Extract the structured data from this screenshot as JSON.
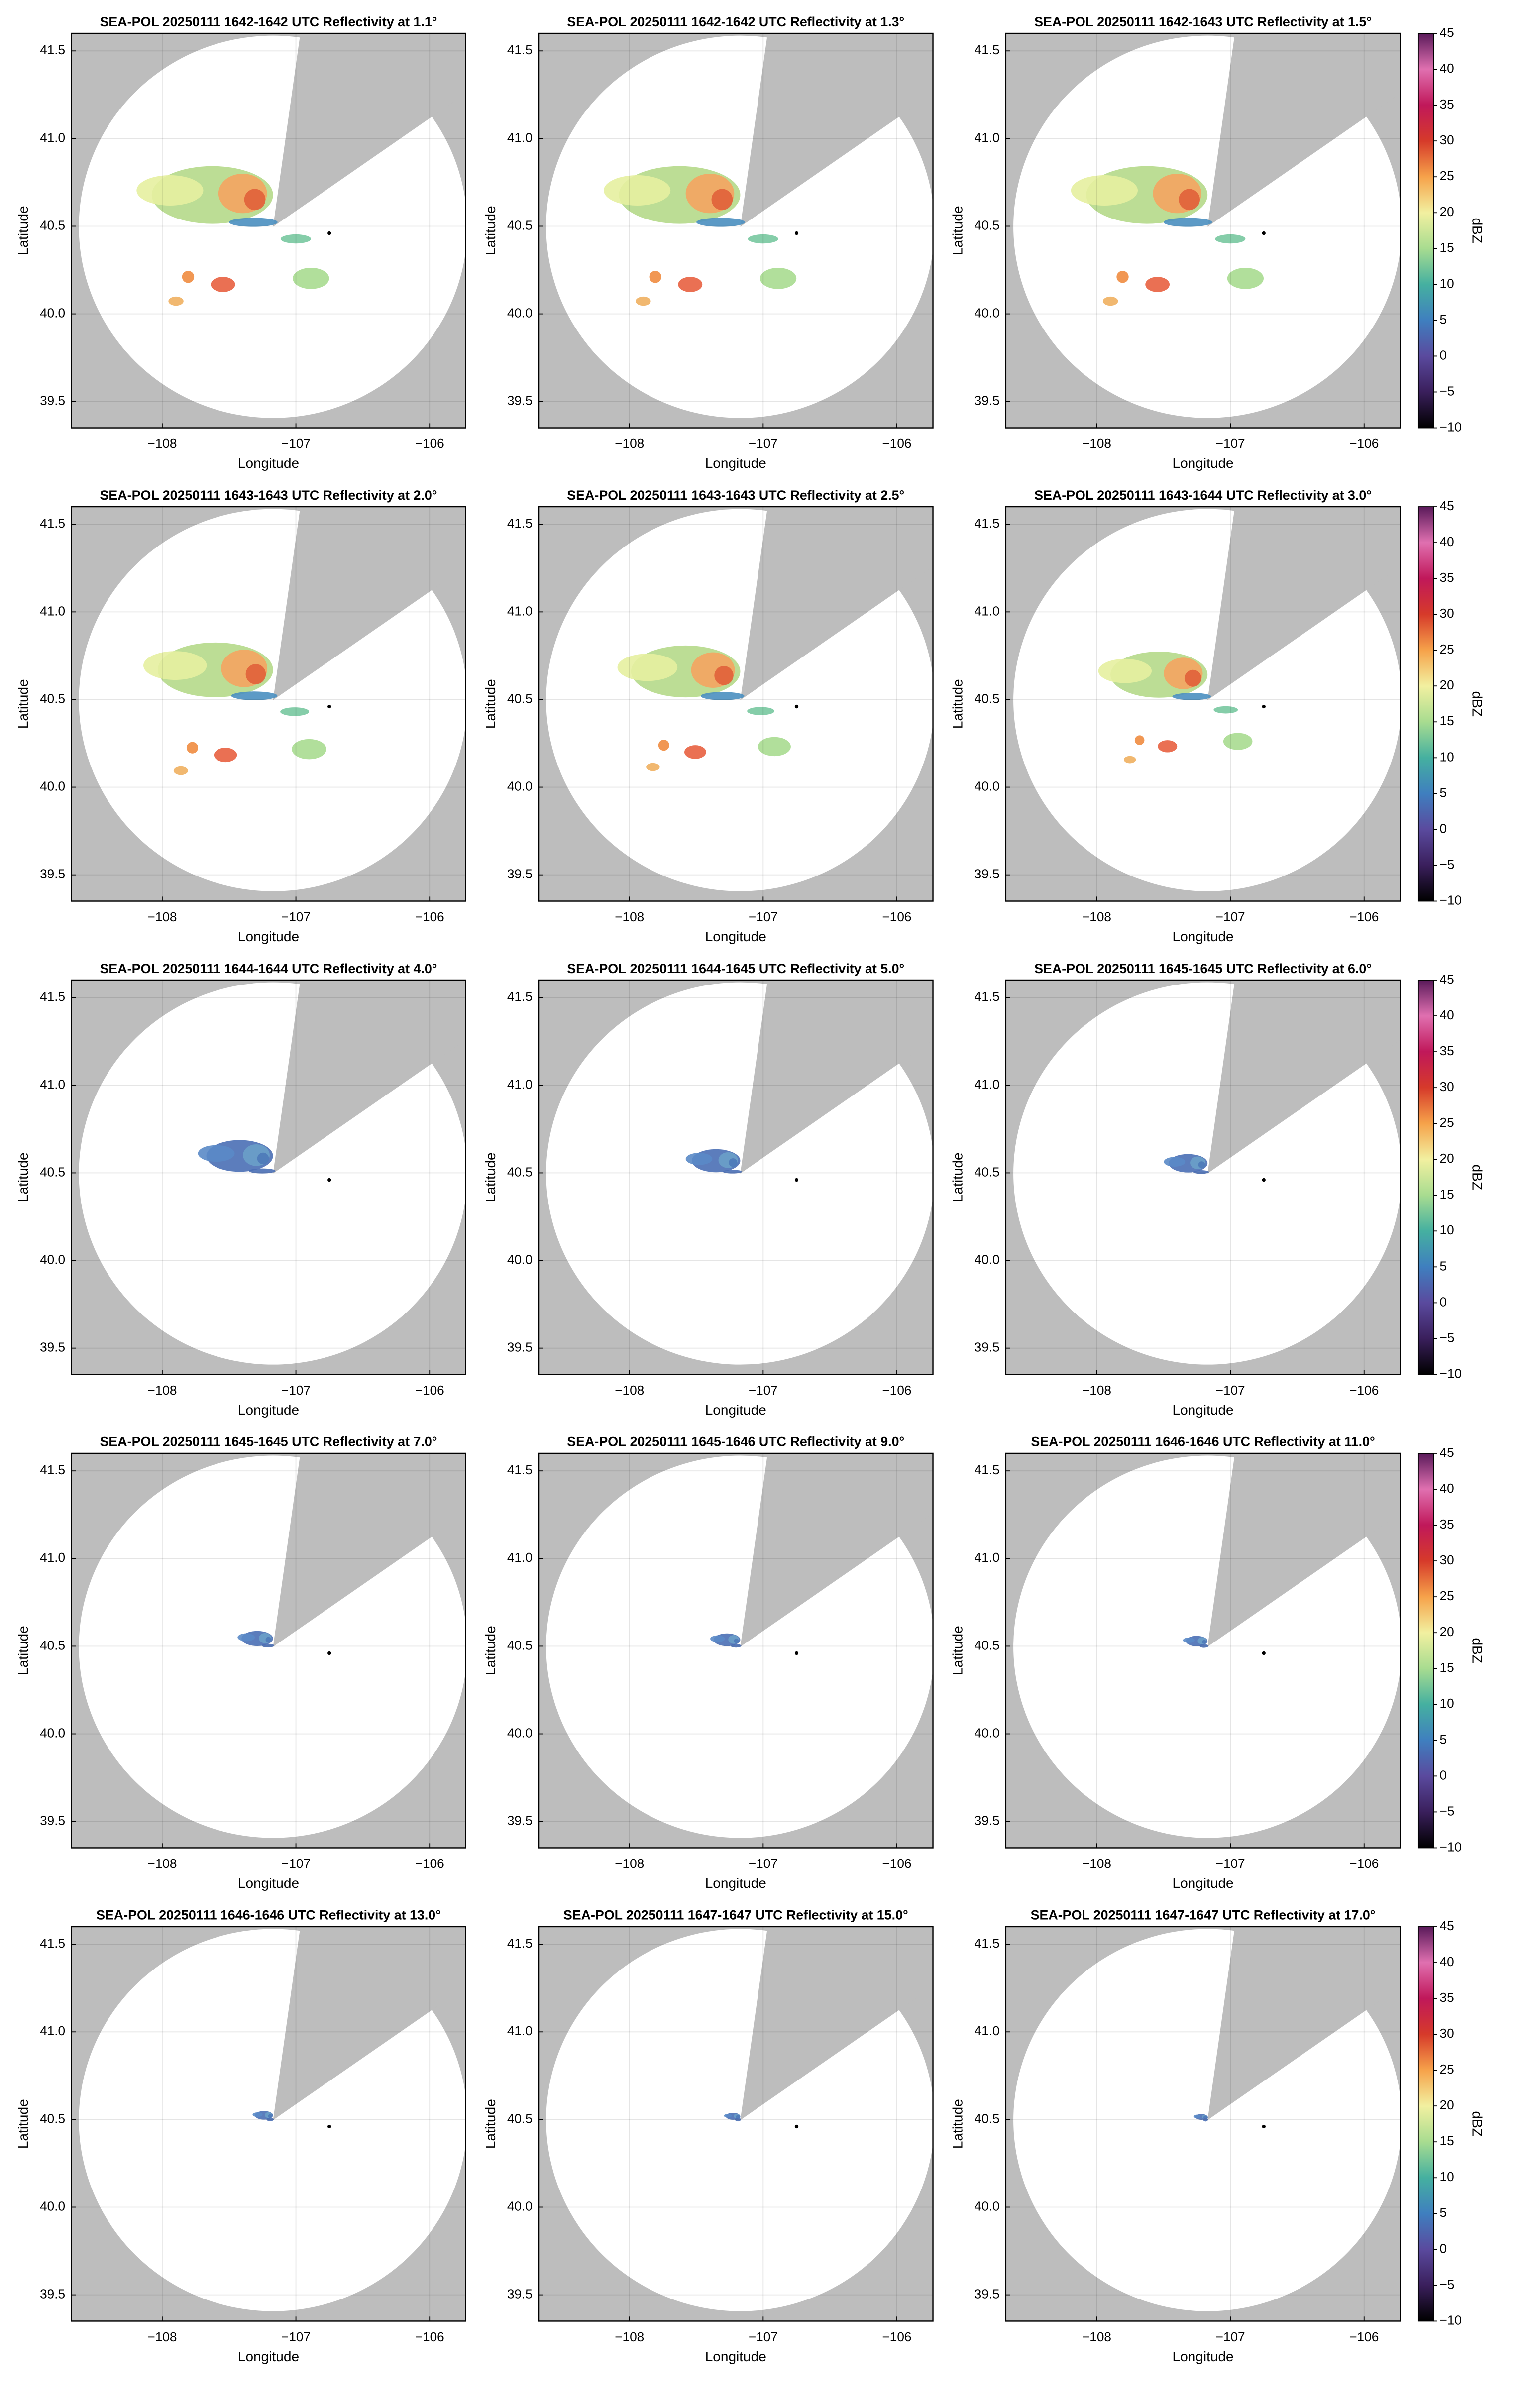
{
  "chart_data": [
    {
      "type": "ppi",
      "title": "SEA-POL 20250111 1642-1642 UTC Reflectivity at 1.1°",
      "xlabel": "Longitude",
      "ylabel": "Latitude",
      "xlim": [
        -108.68,
        -105.73
      ],
      "ylim": [
        39.35,
        41.6
      ],
      "xticks": [
        {
          "value": -108,
          "label": "−108"
        },
        {
          "value": -107,
          "label": "−107"
        },
        {
          "value": -106,
          "label": "−106"
        }
      ],
      "yticks": [
        39.5,
        {
          "value": 40,
          "label": "40.0"
        },
        40.5,
        {
          "value": 41,
          "label": "41.0"
        },
        41.5
      ],
      "grid": true,
      "x": [
        -106.75
      ],
      "y": [
        40.46
      ]
    },
    {
      "type": "ppi",
      "title": "SEA-POL 20250111 1642-1642 UTC Reflectivity at 1.3°",
      "xlabel": "Longitude",
      "ylabel": "Latitude",
      "xlim": [
        -108.68,
        -105.73
      ],
      "ylim": [
        39.35,
        41.6
      ],
      "xticks": [
        {
          "value": -108,
          "label": "−108"
        },
        {
          "value": -107,
          "label": "−107"
        },
        {
          "value": -106,
          "label": "−106"
        }
      ],
      "yticks": [
        39.5,
        {
          "value": 40,
          "label": "40.0"
        },
        40.5,
        {
          "value": 41,
          "label": "41.0"
        },
        41.5
      ],
      "grid": true,
      "x": [
        -106.75
      ],
      "y": [
        40.46
      ]
    },
    {
      "type": "ppi",
      "title": "SEA-POL 20250111 1642-1643 UTC Reflectivity at 1.5°",
      "xlabel": "Longitude",
      "ylabel": "Latitude",
      "xlim": [
        -108.68,
        -105.73
      ],
      "ylim": [
        39.35,
        41.6
      ],
      "xticks": [
        {
          "value": -108,
          "label": "−108"
        },
        {
          "value": -107,
          "label": "−107"
        },
        {
          "value": -106,
          "label": "−106"
        }
      ],
      "yticks": [
        39.5,
        {
          "value": 40,
          "label": "40.0"
        },
        40.5,
        {
          "value": 41,
          "label": "41.0"
        },
        41.5
      ],
      "grid": true,
      "x": [
        -106.75
      ],
      "y": [
        40.46
      ],
      "colorbar": {
        "label": "dBZ",
        "lim": [
          -10,
          45
        ],
        "ticks": [
          {
            "value": -10,
            "label": "−10"
          },
          {
            "value": -5,
            "label": "−5"
          },
          0,
          5,
          10,
          15,
          20,
          25,
          30,
          35,
          40,
          45
        ],
        "colors": [
          "#000000",
          "#3a1f5c",
          "#5a4a9e",
          "#3f7fbf",
          "#45b0a0",
          "#a8dc90",
          "#f2f0a0",
          "#f6a24a",
          "#d63a2a",
          "#c0185a",
          "#e070b0",
          "#5a1a5a"
        ]
      }
    },
    {
      "type": "ppi",
      "title": "SEA-POL 20250111 1643-1643 UTC Reflectivity at 2.0°",
      "xlabel": "Longitude",
      "ylabel": "Latitude",
      "xlim": [
        -108.68,
        -105.73
      ],
      "ylim": [
        39.35,
        41.6
      ],
      "xticks": [
        {
          "value": -108,
          "label": "−108"
        },
        {
          "value": -107,
          "label": "−107"
        },
        {
          "value": -106,
          "label": "−106"
        }
      ],
      "yticks": [
        39.5,
        {
          "value": 40,
          "label": "40.0"
        },
        40.5,
        {
          "value": 41,
          "label": "41.0"
        },
        41.5
      ],
      "grid": true,
      "x": [
        -106.75
      ],
      "y": [
        40.46
      ]
    },
    {
      "type": "ppi",
      "title": "SEA-POL 20250111 1643-1643 UTC Reflectivity at 2.5°",
      "xlabel": "Longitude",
      "ylabel": "Latitude",
      "xlim": [
        -108.68,
        -105.73
      ],
      "ylim": [
        39.35,
        41.6
      ],
      "xticks": [
        {
          "value": -108,
          "label": "−108"
        },
        {
          "value": -107,
          "label": "−107"
        },
        {
          "value": -106,
          "label": "−106"
        }
      ],
      "yticks": [
        39.5,
        {
          "value": 40,
          "label": "40.0"
        },
        40.5,
        {
          "value": 41,
          "label": "41.0"
        },
        41.5
      ],
      "grid": true,
      "x": [
        -106.75
      ],
      "y": [
        40.46
      ]
    },
    {
      "type": "ppi",
      "title": "SEA-POL 20250111 1643-1644 UTC Reflectivity at 3.0°",
      "xlabel": "Longitude",
      "ylabel": "Latitude",
      "xlim": [
        -108.68,
        -105.73
      ],
      "ylim": [
        39.35,
        41.6
      ],
      "xticks": [
        {
          "value": -108,
          "label": "−108"
        },
        {
          "value": -107,
          "label": "−107"
        },
        {
          "value": -106,
          "label": "−106"
        }
      ],
      "yticks": [
        39.5,
        {
          "value": 40,
          "label": "40.0"
        },
        40.5,
        {
          "value": 41,
          "label": "41.0"
        },
        41.5
      ],
      "grid": true,
      "x": [
        -106.75
      ],
      "y": [
        40.46
      ],
      "colorbar": {
        "label": "dBZ",
        "lim": [
          -10,
          45
        ],
        "ticks": [
          {
            "value": -10,
            "label": "−10"
          },
          {
            "value": -5,
            "label": "−5"
          },
          0,
          5,
          10,
          15,
          20,
          25,
          30,
          35,
          40,
          45
        ],
        "colors": [
          "#000000",
          "#3a1f5c",
          "#5a4a9e",
          "#3f7fbf",
          "#45b0a0",
          "#a8dc90",
          "#f2f0a0",
          "#f6a24a",
          "#d63a2a",
          "#c0185a",
          "#e070b0",
          "#5a1a5a"
        ]
      }
    },
    {
      "type": "ppi",
      "title": "SEA-POL 20250111 1644-1644 UTC Reflectivity at 4.0°",
      "xlabel": "Longitude",
      "ylabel": "Latitude",
      "xlim": [
        -108.68,
        -105.73
      ],
      "ylim": [
        39.35,
        41.6
      ],
      "xticks": [
        {
          "value": -108,
          "label": "−108"
        },
        {
          "value": -107,
          "label": "−107"
        },
        {
          "value": -106,
          "label": "−106"
        }
      ],
      "yticks": [
        39.5,
        {
          "value": 40,
          "label": "40.0"
        },
        40.5,
        {
          "value": 41,
          "label": "41.0"
        },
        41.5
      ],
      "grid": true,
      "x": [
        -106.75
      ],
      "y": [
        40.46
      ]
    },
    {
      "type": "ppi",
      "title": "SEA-POL 20250111 1644-1645 UTC Reflectivity at 5.0°",
      "xlabel": "Longitude",
      "ylabel": "Latitude",
      "xlim": [
        -108.68,
        -105.73
      ],
      "ylim": [
        39.35,
        41.6
      ],
      "xticks": [
        {
          "value": -108,
          "label": "−108"
        },
        {
          "value": -107,
          "label": "−107"
        },
        {
          "value": -106,
          "label": "−106"
        }
      ],
      "yticks": [
        39.5,
        {
          "value": 40,
          "label": "40.0"
        },
        40.5,
        {
          "value": 41,
          "label": "41.0"
        },
        41.5
      ],
      "grid": true,
      "x": [
        -106.75
      ],
      "y": [
        40.46
      ]
    },
    {
      "type": "ppi",
      "title": "SEA-POL 20250111 1645-1645 UTC Reflectivity at 6.0°",
      "xlabel": "Longitude",
      "ylabel": "Latitude",
      "xlim": [
        -108.68,
        -105.73
      ],
      "ylim": [
        39.35,
        41.6
      ],
      "xticks": [
        {
          "value": -108,
          "label": "−108"
        },
        {
          "value": -107,
          "label": "−107"
        },
        {
          "value": -106,
          "label": "−106"
        }
      ],
      "yticks": [
        39.5,
        {
          "value": 40,
          "label": "40.0"
        },
        40.5,
        {
          "value": 41,
          "label": "41.0"
        },
        41.5
      ],
      "grid": true,
      "x": [
        -106.75
      ],
      "y": [
        40.46
      ],
      "colorbar": {
        "label": "dBZ",
        "lim": [
          -10,
          45
        ],
        "ticks": [
          {
            "value": -10,
            "label": "−10"
          },
          {
            "value": -5,
            "label": "−5"
          },
          0,
          5,
          10,
          15,
          20,
          25,
          30,
          35,
          40,
          45
        ],
        "colors": [
          "#000000",
          "#3a1f5c",
          "#5a4a9e",
          "#3f7fbf",
          "#45b0a0",
          "#a8dc90",
          "#f2f0a0",
          "#f6a24a",
          "#d63a2a",
          "#c0185a",
          "#e070b0",
          "#5a1a5a"
        ]
      }
    },
    {
      "type": "ppi",
      "title": "SEA-POL 20250111 1645-1645 UTC Reflectivity at 7.0°",
      "xlabel": "Longitude",
      "ylabel": "Latitude",
      "xlim": [
        -108.68,
        -105.73
      ],
      "ylim": [
        39.35,
        41.6
      ],
      "xticks": [
        {
          "value": -108,
          "label": "−108"
        },
        {
          "value": -107,
          "label": "−107"
        },
        {
          "value": -106,
          "label": "−106"
        }
      ],
      "yticks": [
        39.5,
        {
          "value": 40,
          "label": "40.0"
        },
        40.5,
        {
          "value": 41,
          "label": "41.0"
        },
        41.5
      ],
      "grid": true,
      "x": [
        -106.75
      ],
      "y": [
        40.46
      ]
    },
    {
      "type": "ppi",
      "title": "SEA-POL 20250111 1645-1646 UTC Reflectivity at 9.0°",
      "xlabel": "Longitude",
      "ylabel": "Latitude",
      "xlim": [
        -108.68,
        -105.73
      ],
      "ylim": [
        39.35,
        41.6
      ],
      "xticks": [
        {
          "value": -108,
          "label": "−108"
        },
        {
          "value": -107,
          "label": "−107"
        },
        {
          "value": -106,
          "label": "−106"
        }
      ],
      "yticks": [
        39.5,
        {
          "value": 40,
          "label": "40.0"
        },
        40.5,
        {
          "value": 41,
          "label": "41.0"
        },
        41.5
      ],
      "grid": true,
      "x": [
        -106.75
      ],
      "y": [
        40.46
      ]
    },
    {
      "type": "ppi",
      "title": "SEA-POL 20250111 1646-1646 UTC Reflectivity at 11.0°",
      "xlabel": "Longitude",
      "ylabel": "Latitude",
      "xlim": [
        -108.68,
        -105.73
      ],
      "ylim": [
        39.35,
        41.6
      ],
      "xticks": [
        {
          "value": -108,
          "label": "−108"
        },
        {
          "value": -107,
          "label": "−107"
        },
        {
          "value": -106,
          "label": "−106"
        }
      ],
      "yticks": [
        39.5,
        {
          "value": 40,
          "label": "40.0"
        },
        40.5,
        {
          "value": 41,
          "label": "41.0"
        },
        41.5
      ],
      "grid": true,
      "x": [
        -106.75
      ],
      "y": [
        40.46
      ],
      "colorbar": {
        "label": "dBZ",
        "lim": [
          -10,
          45
        ],
        "ticks": [
          {
            "value": -10,
            "label": "−10"
          },
          {
            "value": -5,
            "label": "−5"
          },
          0,
          5,
          10,
          15,
          20,
          25,
          30,
          35,
          40,
          45
        ],
        "colors": [
          "#000000",
          "#3a1f5c",
          "#5a4a9e",
          "#3f7fbf",
          "#45b0a0",
          "#a8dc90",
          "#f2f0a0",
          "#f6a24a",
          "#d63a2a",
          "#c0185a",
          "#e070b0",
          "#5a1a5a"
        ]
      }
    },
    {
      "type": "ppi",
      "title": "SEA-POL 20250111 1646-1646 UTC Reflectivity at 13.0°",
      "xlabel": "Longitude",
      "ylabel": "Latitude",
      "xlim": [
        -108.68,
        -105.73
      ],
      "ylim": [
        39.35,
        41.6
      ],
      "xticks": [
        {
          "value": -108,
          "label": "−108"
        },
        {
          "value": -107,
          "label": "−107"
        },
        {
          "value": -106,
          "label": "−106"
        }
      ],
      "yticks": [
        39.5,
        {
          "value": 40,
          "label": "40.0"
        },
        40.5,
        {
          "value": 41,
          "label": "41.0"
        },
        41.5
      ],
      "grid": true,
      "x": [
        -106.75
      ],
      "y": [
        40.46
      ]
    },
    {
      "type": "ppi",
      "title": "SEA-POL 20250111 1647-1647 UTC Reflectivity at 15.0°",
      "xlabel": "Longitude",
      "ylabel": "Latitude",
      "xlim": [
        -108.68,
        -105.73
      ],
      "ylim": [
        39.35,
        41.6
      ],
      "xticks": [
        {
          "value": -108,
          "label": "−108"
        },
        {
          "value": -107,
          "label": "−107"
        },
        {
          "value": -106,
          "label": "−106"
        }
      ],
      "yticks": [
        39.5,
        {
          "value": 40,
          "label": "40.0"
        },
        40.5,
        {
          "value": 41,
          "label": "41.0"
        },
        41.5
      ],
      "grid": true,
      "x": [
        -106.75
      ],
      "y": [
        40.46
      ]
    },
    {
      "type": "ppi",
      "title": "SEA-POL 20250111 1647-1647 UTC Reflectivity at 17.0°",
      "xlabel": "Longitude",
      "ylabel": "Latitude",
      "xlim": [
        -108.68,
        -105.73
      ],
      "ylim": [
        39.35,
        41.6
      ],
      "xticks": [
        {
          "value": -108,
          "label": "−108"
        },
        {
          "value": -107,
          "label": "−107"
        },
        {
          "value": -106,
          "label": "−106"
        }
      ],
      "yticks": [
        39.5,
        {
          "value": 40,
          "label": "40.0"
        },
        40.5,
        {
          "value": 41,
          "label": "41.0"
        },
        41.5
      ],
      "grid": true,
      "x": [
        -106.75
      ],
      "y": [
        40.46
      ],
      "colorbar": {
        "label": "dBZ",
        "lim": [
          -10,
          45
        ],
        "ticks": [
          {
            "value": -10,
            "label": "−10"
          },
          {
            "value": -5,
            "label": "−5"
          },
          0,
          5,
          10,
          15,
          20,
          25,
          30,
          35,
          40,
          45
        ],
        "colors": [
          "#000000",
          "#3a1f5c",
          "#5a4a9e",
          "#3f7fbf",
          "#45b0a0",
          "#a8dc90",
          "#f2f0a0",
          "#f6a24a",
          "#d63a2a",
          "#c0185a",
          "#e070b0",
          "#5a1a5a"
        ]
      }
    }
  ]
}
